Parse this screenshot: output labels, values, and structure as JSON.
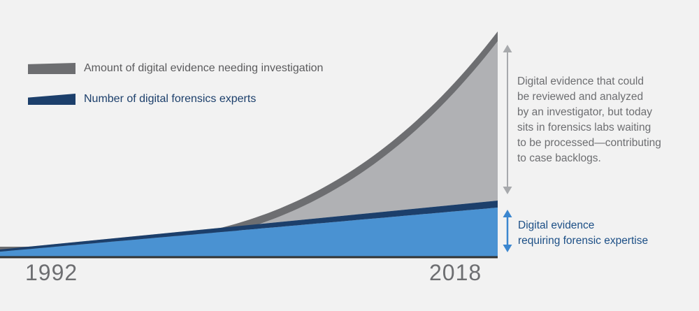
{
  "colors": {
    "background": "#f2f2f2",
    "evidence_band": "#6d6e71",
    "backlog_fill": "#b0b1b4",
    "experts_band": "#1c3f6b",
    "expertise_fill": "#4a92d2",
    "baseline": "#333333",
    "gray_arrow": "#a7a9ac",
    "blue_arrow": "#3b86cf"
  },
  "legend": {
    "evidence_label": "Amount of digital evidence needing investigation",
    "experts_label": "Number of digital forensics experts"
  },
  "axis": {
    "start_label": "1992",
    "end_label": "2018"
  },
  "annotations": {
    "backlog_lines": [
      "Digital evidence that could",
      "be reviewed and analyzed",
      "by an investigator, but today",
      "sits in forensics labs waiting",
      "to be processed—contributing",
      "to case backlogs."
    ],
    "expertise_lines": [
      "Digital evidence",
      "requiring forensic expertise"
    ]
  },
  "chart_data": {
    "type": "area",
    "x": [
      "1992",
      "2018"
    ],
    "series": [
      {
        "name": "Amount of digital evidence needing investigation",
        "trend": "exponential"
      },
      {
        "name": "Number of digital forensics experts",
        "trend": "linear"
      }
    ],
    "grid": false,
    "legend_position": "top-left"
  }
}
